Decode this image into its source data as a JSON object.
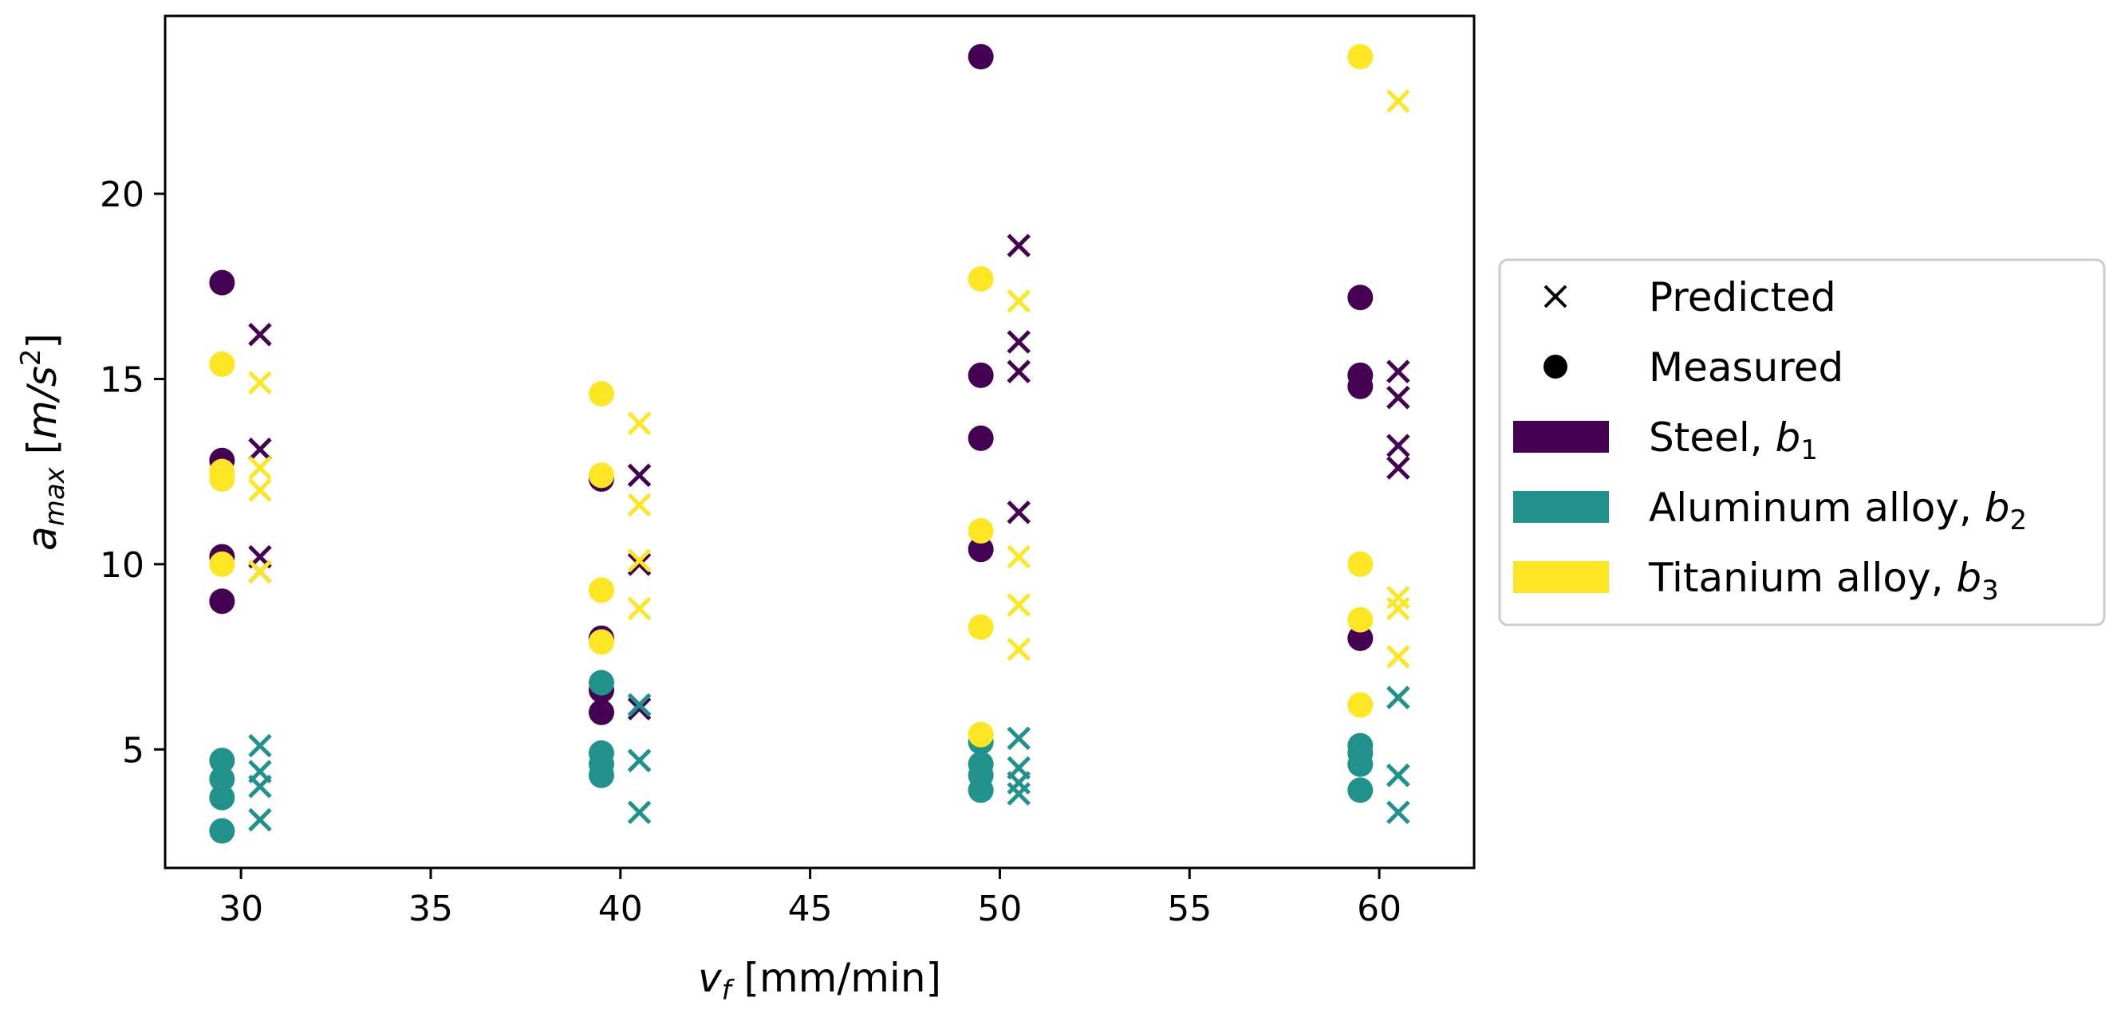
{
  "chart_data": {
    "type": "scatter",
    "xlabel": {
      "main": "v",
      "sub": "f",
      "unit": " [mm/min]"
    },
    "ylabel": {
      "main": "a",
      "sub": "max",
      "unit_pre": " [",
      "unit_m": "m/s",
      "unit_sup": "2",
      "unit_post": "]"
    },
    "xlim": [
      28,
      62.5
    ],
    "ylim": [
      1.8,
      24.8
    ],
    "xticks": [
      30,
      35,
      40,
      45,
      50,
      55,
      60
    ],
    "yticks": [
      5,
      10,
      15,
      20
    ],
    "colors": {
      "steel": "#440154",
      "aluminum": "#21918c",
      "titanium": "#fde725"
    },
    "legend": [
      {
        "kind": "marker",
        "marker": "x",
        "label": "Predicted"
      },
      {
        "kind": "marker",
        "marker": "o",
        "label": "Measured"
      },
      {
        "kind": "patch",
        "series": "steel",
        "label": "Steel, ",
        "b": "b",
        "sub": "1"
      },
      {
        "kind": "patch",
        "series": "aluminum",
        "label": "Aluminum alloy, ",
        "b": "b",
        "sub": "2"
      },
      {
        "kind": "patch",
        "series": "titanium",
        "label": "Titanium alloy, ",
        "b": "b",
        "sub": "3"
      }
    ],
    "series": [
      {
        "name": "Steel",
        "key": "steel",
        "measured": [
          {
            "x": 29.5,
            "y": 17.6
          },
          {
            "x": 29.5,
            "y": 12.8
          },
          {
            "x": 29.5,
            "y": 10.2
          },
          {
            "x": 29.5,
            "y": 9.0
          },
          {
            "x": 39.5,
            "y": 12.3
          },
          {
            "x": 39.5,
            "y": 8.0
          },
          {
            "x": 39.5,
            "y": 6.6
          },
          {
            "x": 39.5,
            "y": 6.0
          },
          {
            "x": 49.5,
            "y": 23.7
          },
          {
            "x": 49.5,
            "y": 15.1
          },
          {
            "x": 49.5,
            "y": 13.4
          },
          {
            "x": 49.5,
            "y": 10.4
          },
          {
            "x": 59.5,
            "y": 17.2
          },
          {
            "x": 59.5,
            "y": 15.1
          },
          {
            "x": 59.5,
            "y": 14.8
          },
          {
            "x": 59.5,
            "y": 8.0
          }
        ],
        "predicted": [
          {
            "x": 30.5,
            "y": 16.2
          },
          {
            "x": 30.5,
            "y": 13.1
          },
          {
            "x": 30.5,
            "y": 10.2
          },
          {
            "x": 30.5,
            "y": 9.8
          },
          {
            "x": 40.5,
            "y": 12.4
          },
          {
            "x": 40.5,
            "y": 10.0
          },
          {
            "x": 40.5,
            "y": 6.2
          },
          {
            "x": 40.5,
            "y": 6.1
          },
          {
            "x": 50.5,
            "y": 18.6
          },
          {
            "x": 50.5,
            "y": 16.0
          },
          {
            "x": 50.5,
            "y": 15.2
          },
          {
            "x": 50.5,
            "y": 11.4
          },
          {
            "x": 60.5,
            "y": 15.2
          },
          {
            "x": 60.5,
            "y": 14.5
          },
          {
            "x": 60.5,
            "y": 13.2
          },
          {
            "x": 60.5,
            "y": 12.6
          }
        ]
      },
      {
        "name": "Aluminum alloy",
        "key": "aluminum",
        "measured": [
          {
            "x": 29.5,
            "y": 4.7
          },
          {
            "x": 29.5,
            "y": 4.2
          },
          {
            "x": 29.5,
            "y": 3.7
          },
          {
            "x": 29.5,
            "y": 2.8
          },
          {
            "x": 39.5,
            "y": 6.8
          },
          {
            "x": 39.5,
            "y": 4.9
          },
          {
            "x": 39.5,
            "y": 4.6
          },
          {
            "x": 39.5,
            "y": 4.3
          },
          {
            "x": 49.5,
            "y": 5.2
          },
          {
            "x": 49.5,
            "y": 4.6
          },
          {
            "x": 49.5,
            "y": 4.3
          },
          {
            "x": 49.5,
            "y": 3.9
          },
          {
            "x": 59.5,
            "y": 5.1
          },
          {
            "x": 59.5,
            "y": 4.9
          },
          {
            "x": 59.5,
            "y": 4.6
          },
          {
            "x": 59.5,
            "y": 3.9
          }
        ],
        "predicted": [
          {
            "x": 30.5,
            "y": 5.1
          },
          {
            "x": 30.5,
            "y": 4.4
          },
          {
            "x": 30.5,
            "y": 4.0
          },
          {
            "x": 30.5,
            "y": 3.1
          },
          {
            "x": 40.5,
            "y": 6.2
          },
          {
            "x": 40.5,
            "y": 4.7
          },
          {
            "x": 40.5,
            "y": 4.7
          },
          {
            "x": 40.5,
            "y": 3.3
          },
          {
            "x": 50.5,
            "y": 5.3
          },
          {
            "x": 50.5,
            "y": 4.5
          },
          {
            "x": 50.5,
            "y": 4.1
          },
          {
            "x": 50.5,
            "y": 3.8
          },
          {
            "x": 60.5,
            "y": 6.4
          },
          {
            "x": 60.5,
            "y": 4.3
          },
          {
            "x": 60.5,
            "y": 4.3
          },
          {
            "x": 60.5,
            "y": 3.3
          }
        ]
      },
      {
        "name": "Titanium alloy",
        "key": "titanium",
        "measured": [
          {
            "x": 29.5,
            "y": 15.4
          },
          {
            "x": 29.5,
            "y": 12.5
          },
          {
            "x": 29.5,
            "y": 12.3
          },
          {
            "x": 29.5,
            "y": 10.0
          },
          {
            "x": 39.5,
            "y": 14.6
          },
          {
            "x": 39.5,
            "y": 12.4
          },
          {
            "x": 39.5,
            "y": 9.3
          },
          {
            "x": 39.5,
            "y": 7.9
          },
          {
            "x": 49.5,
            "y": 17.7
          },
          {
            "x": 49.5,
            "y": 10.9
          },
          {
            "x": 49.5,
            "y": 8.3
          },
          {
            "x": 49.5,
            "y": 5.4
          },
          {
            "x": 59.5,
            "y": 23.7
          },
          {
            "x": 59.5,
            "y": 10.0
          },
          {
            "x": 59.5,
            "y": 8.5
          },
          {
            "x": 59.5,
            "y": 6.2
          }
        ],
        "predicted": [
          {
            "x": 30.5,
            "y": 14.9
          },
          {
            "x": 30.5,
            "y": 12.6
          },
          {
            "x": 30.5,
            "y": 12.0
          },
          {
            "x": 30.5,
            "y": 9.8
          },
          {
            "x": 40.5,
            "y": 13.8
          },
          {
            "x": 40.5,
            "y": 11.6
          },
          {
            "x": 40.5,
            "y": 10.1
          },
          {
            "x": 40.5,
            "y": 8.8
          },
          {
            "x": 50.5,
            "y": 17.1
          },
          {
            "x": 50.5,
            "y": 10.2
          },
          {
            "x": 50.5,
            "y": 8.9
          },
          {
            "x": 50.5,
            "y": 7.7
          },
          {
            "x": 60.5,
            "y": 22.5
          },
          {
            "x": 60.5,
            "y": 9.1
          },
          {
            "x": 60.5,
            "y": 8.8
          },
          {
            "x": 60.5,
            "y": 7.5
          }
        ]
      }
    ]
  }
}
